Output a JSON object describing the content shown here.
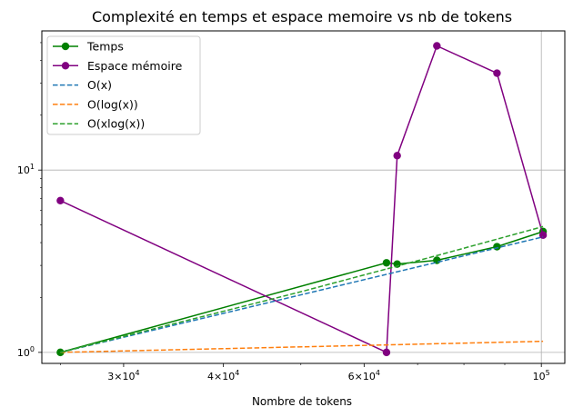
{
  "chart_data": {
    "type": "line",
    "title": "Complexité en temps et espace memoire vs nb de tokens",
    "xlabel": "Nombre de tokens",
    "ylabel": "",
    "xscale": "log",
    "yscale": "log",
    "xlim": [
      23700,
      107000
    ],
    "ylim": [
      0.87,
      58
    ],
    "grid": "major",
    "legend_position": "top-left",
    "x_tick_labels": [
      {
        "value": 30000,
        "mantissa": "3",
        "exponent": "4"
      },
      {
        "value": 40000,
        "mantissa": "4",
        "exponent": "4"
      },
      {
        "value": 60000,
        "mantissa": "6",
        "exponent": "4"
      },
      {
        "value": 100000,
        "mantissa": "",
        "exponent": "5"
      }
    ],
    "y_tick_labels": [
      {
        "value": 1,
        "mantissa": "",
        "exponent": "0"
      },
      {
        "value": 10,
        "mantissa": "",
        "exponent": "1"
      }
    ],
    "series": [
      {
        "name": "Temps",
        "color": "#008000",
        "style": "solid",
        "marker": "circle",
        "points": [
          [
            25000,
            1.0
          ],
          [
            64000,
            3.1
          ],
          [
            66000,
            3.05
          ],
          [
            74000,
            3.2
          ],
          [
            88000,
            3.8
          ],
          [
            100500,
            4.6
          ]
        ]
      },
      {
        "name": "Espace mémoire",
        "color": "#800080",
        "style": "solid",
        "marker": "circle",
        "points": [
          [
            25000,
            6.8
          ],
          [
            64000,
            1.0
          ],
          [
            66000,
            12.0
          ],
          [
            74000,
            48.0
          ],
          [
            88000,
            34.0
          ],
          [
            100500,
            4.4
          ]
        ]
      },
      {
        "name": "O(x)",
        "color": "#1f77b4",
        "style": "dashed",
        "marker": "none",
        "points": [
          [
            25000,
            1.0
          ],
          [
            100500,
            4.3
          ]
        ]
      },
      {
        "name": "O(log(x))",
        "color": "#ff7f0e",
        "style": "dashed",
        "marker": "none",
        "points": [
          [
            25000,
            1.0
          ],
          [
            100500,
            1.15
          ]
        ]
      },
      {
        "name": "O(xlog(x))",
        "color": "#2ca02c",
        "style": "dashed",
        "marker": "none",
        "points": [
          [
            25000,
            1.0
          ],
          [
            50000,
            2.15
          ],
          [
            75000,
            3.45
          ],
          [
            100500,
            4.9
          ]
        ]
      }
    ]
  }
}
